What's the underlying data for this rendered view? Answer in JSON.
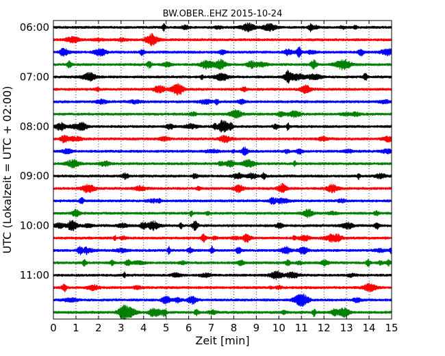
{
  "chart_data": {
    "type": "line",
    "title": "BW.OBER..EHZ 2015-10-24",
    "xlabel": "Zeit  [min]",
    "ylabel": "UTC (Lokalzeit = UTC + 02:00)",
    "xlim": [
      0,
      15
    ],
    "x_ticks": [
      "0",
      "1",
      "2",
      "3",
      "4",
      "5",
      "6",
      "7",
      "8",
      "9",
      "10",
      "11",
      "12",
      "13",
      "14",
      "15"
    ],
    "grid": "vertical dotted at each minute",
    "rows_start": "06:00",
    "row_interval_minutes": 15,
    "y_ticks": [
      "06:00",
      "07:00",
      "08:00",
      "09:00",
      "10:00",
      "11:00"
    ],
    "trace_color_cycle": [
      "#000000",
      "#ff0000",
      "#0000ff",
      "#008000"
    ],
    "series": [
      {
        "start": "06:00",
        "color": "#000000"
      },
      {
        "start": "06:15",
        "color": "#ff0000"
      },
      {
        "start": "06:30",
        "color": "#0000ff"
      },
      {
        "start": "06:45",
        "color": "#008000"
      },
      {
        "start": "07:00",
        "color": "#000000"
      },
      {
        "start": "07:15",
        "color": "#ff0000"
      },
      {
        "start": "07:30",
        "color": "#0000ff"
      },
      {
        "start": "07:45",
        "color": "#008000"
      },
      {
        "start": "08:00",
        "color": "#000000"
      },
      {
        "start": "08:15",
        "color": "#ff0000"
      },
      {
        "start": "08:30",
        "color": "#0000ff"
      },
      {
        "start": "08:45",
        "color": "#008000"
      },
      {
        "start": "09:00",
        "color": "#000000"
      },
      {
        "start": "09:15",
        "color": "#ff0000"
      },
      {
        "start": "09:30",
        "color": "#0000ff"
      },
      {
        "start": "09:45",
        "color": "#008000"
      },
      {
        "start": "10:00",
        "color": "#000000"
      },
      {
        "start": "10:15",
        "color": "#ff0000"
      },
      {
        "start": "10:30",
        "color": "#0000ff"
      },
      {
        "start": "10:45",
        "color": "#008000"
      },
      {
        "start": "11:00",
        "color": "#000000"
      },
      {
        "start": "11:15",
        "color": "#ff0000"
      },
      {
        "start": "11:30",
        "color": "#0000ff"
      },
      {
        "start": "11:45",
        "color": "#008000"
      }
    ]
  }
}
